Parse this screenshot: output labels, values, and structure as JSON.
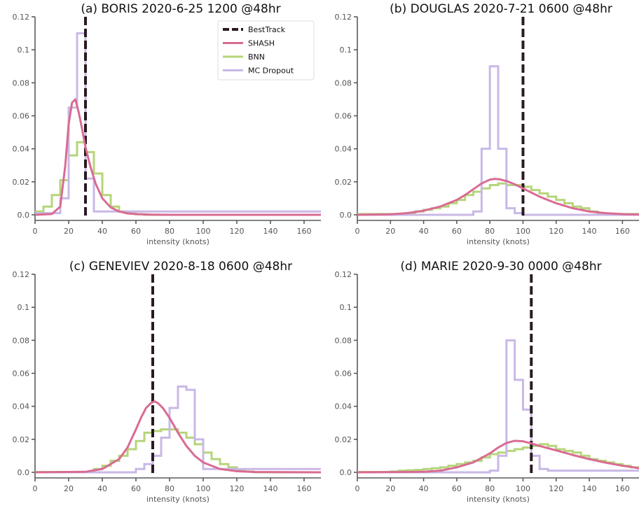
{
  "chart_data": [
    {
      "type": "line",
      "title": "(a) BORIS 2020-6-25 1200 @48hr",
      "xlabel": "intensity (knots)",
      "ylabel": "",
      "xlim": [
        0,
        170
      ],
      "ylim": [
        0,
        0.12
      ],
      "xticks": [
        "0",
        "20",
        "40",
        "60",
        "80",
        "100",
        "120",
        "140",
        "160"
      ],
      "yticks": [
        "0.0",
        "0.02",
        "0.04",
        "0.06",
        "0.08",
        "0.1",
        "0.12"
      ],
      "legend": {
        "position": "top-right",
        "entries": [
          "BestTrack",
          "SHASH",
          "BNN",
          "MC Dropout"
        ]
      },
      "besttrack": 30,
      "shash": {
        "x": [
          0,
          10,
          15,
          18,
          20,
          22,
          24,
          26,
          28,
          30,
          33,
          36,
          40,
          45,
          50,
          55,
          60,
          70,
          80,
          100,
          170
        ],
        "y": [
          0,
          0.0005,
          0.005,
          0.03,
          0.055,
          0.068,
          0.07,
          0.062,
          0.052,
          0.041,
          0.029,
          0.019,
          0.01,
          0.0045,
          0.002,
          0.0009,
          0.0004,
          0.0001,
          0,
          0,
          0
        ]
      },
      "bnn": {
        "edges": [
          0,
          5,
          10,
          15,
          20,
          25,
          30,
          35,
          40,
          45,
          50,
          55,
          60,
          65,
          170
        ],
        "values": [
          0.002,
          0.005,
          0.012,
          0.021,
          0.036,
          0.044,
          0.038,
          0.025,
          0.012,
          0.005,
          0.002,
          0.0008,
          0.0003,
          0
        ]
      },
      "mc_dropout": {
        "edges": [
          0,
          15,
          20,
          25,
          30,
          35,
          170
        ],
        "values": [
          0.001,
          0.01,
          0.065,
          0.11,
          0.022,
          0.002
        ]
      }
    },
    {
      "type": "line",
      "title": "(b) DOUGLAS 2020-7-21 0600 @48hr",
      "xlabel": "intensity (knots)",
      "ylabel": "",
      "xlim": [
        0,
        170
      ],
      "ylim": [
        0,
        0.12
      ],
      "xticks": [
        "0",
        "20",
        "40",
        "60",
        "80",
        "100",
        "120",
        "140",
        "160"
      ],
      "yticks": [
        "0.0",
        "0.02",
        "0.04",
        "0.06",
        "0.08",
        "0.1",
        "0.12"
      ],
      "besttrack": 100,
      "shash": {
        "x": [
          0,
          20,
          30,
          40,
          50,
          60,
          65,
          70,
          75,
          80,
          83,
          86,
          90,
          95,
          100,
          105,
          110,
          120,
          130,
          140,
          150,
          160,
          170
        ],
        "y": [
          0,
          0.0003,
          0.001,
          0.0025,
          0.005,
          0.009,
          0.012,
          0.0155,
          0.019,
          0.0213,
          0.0218,
          0.0215,
          0.0205,
          0.0185,
          0.016,
          0.0135,
          0.011,
          0.007,
          0.004,
          0.002,
          0.001,
          0.0004,
          0.0002
        ]
      },
      "bnn": {
        "edges": [
          0,
          30,
          35,
          40,
          45,
          50,
          55,
          60,
          65,
          70,
          75,
          80,
          85,
          90,
          95,
          100,
          105,
          110,
          115,
          120,
          125,
          130,
          135,
          140,
          145,
          150,
          170
        ],
        "values": [
          0.0005,
          0.001,
          0.002,
          0.003,
          0.004,
          0.005,
          0.007,
          0.009,
          0.012,
          0.014,
          0.016,
          0.018,
          0.019,
          0.018,
          0.018,
          0.017,
          0.015,
          0.013,
          0.011,
          0.009,
          0.007,
          0.005,
          0.004,
          0.002,
          0.001,
          0.0005
        ]
      },
      "mc_dropout": {
        "edges": [
          0,
          70,
          75,
          80,
          85,
          90,
          95,
          100,
          170
        ],
        "values": [
          0,
          0.002,
          0.04,
          0.09,
          0.04,
          0.004,
          0.001,
          0
        ]
      }
    },
    {
      "type": "line",
      "title": "(c) GENEVIEV 2020-8-18 0600 @48hr",
      "xlabel": "intensity (knots)",
      "ylabel": "",
      "xlim": [
        0,
        170
      ],
      "ylim": [
        0,
        0.12
      ],
      "xticks": [
        "0",
        "20",
        "40",
        "60",
        "80",
        "100",
        "120",
        "140",
        "160"
      ],
      "yticks": [
        "0.0",
        "0.02",
        "0.04",
        "0.06",
        "0.08",
        "0.1",
        "0.12"
      ],
      "besttrack": 70,
      "shash": {
        "x": [
          0,
          30,
          40,
          50,
          55,
          60,
          63,
          66,
          69,
          71,
          73,
          76,
          80,
          85,
          90,
          95,
          100,
          110,
          120,
          130,
          170
        ],
        "y": [
          0,
          0.0003,
          0.002,
          0.008,
          0.015,
          0.026,
          0.033,
          0.039,
          0.042,
          0.043,
          0.042,
          0.039,
          0.033,
          0.024,
          0.016,
          0.01,
          0.006,
          0.002,
          0.0007,
          0.0002,
          0
        ]
      },
      "bnn": {
        "edges": [
          0,
          35,
          40,
          45,
          50,
          55,
          60,
          65,
          70,
          75,
          80,
          85,
          90,
          95,
          100,
          105,
          110,
          115,
          120,
          125,
          130,
          170
        ],
        "values": [
          0.0002,
          0.002,
          0.004,
          0.007,
          0.01,
          0.014,
          0.019,
          0.024,
          0.025,
          0.026,
          0.026,
          0.024,
          0.021,
          0.017,
          0.012,
          0.008,
          0.005,
          0.003,
          0.0015,
          0.0005,
          0
        ]
      },
      "mc_dropout": {
        "edges": [
          0,
          60,
          65,
          70,
          75,
          80,
          85,
          90,
          95,
          100,
          170
        ],
        "values": [
          0,
          0.002,
          0.005,
          0.01,
          0.021,
          0.039,
          0.052,
          0.05,
          0.02,
          0.002
        ]
      }
    },
    {
      "type": "line",
      "title": "(d) MARIE 2020-9-30 0000 @48hr",
      "xlabel": "intensity (knots)",
      "ylabel": "",
      "xlim": [
        0,
        170
      ],
      "ylim": [
        0,
        0.12
      ],
      "xticks": [
        "0",
        "20",
        "40",
        "60",
        "80",
        "100",
        "120",
        "140",
        "160"
      ],
      "yticks": [
        "0.0",
        "0.02",
        "0.04",
        "0.06",
        "0.08",
        "0.1",
        "0.12"
      ],
      "besttrack": 105,
      "shash": {
        "x": [
          0,
          40,
          50,
          60,
          70,
          80,
          85,
          90,
          95,
          100,
          105,
          110,
          120,
          130,
          140,
          150,
          160,
          170
        ],
        "y": [
          0,
          0.0003,
          0.001,
          0.003,
          0.006,
          0.0115,
          0.015,
          0.0178,
          0.0191,
          0.0188,
          0.0175,
          0.016,
          0.0133,
          0.0105,
          0.008,
          0.0058,
          0.004,
          0.0025
        ]
      },
      "bnn": {
        "edges": [
          0,
          20,
          25,
          30,
          35,
          40,
          45,
          50,
          55,
          60,
          65,
          70,
          75,
          80,
          85,
          90,
          95,
          100,
          105,
          110,
          115,
          120,
          125,
          130,
          135,
          140,
          145,
          150,
          155,
          160,
          165,
          170
        ],
        "values": [
          0.0002,
          0.0005,
          0.001,
          0.0012,
          0.0015,
          0.002,
          0.0025,
          0.003,
          0.004,
          0.005,
          0.006,
          0.007,
          0.009,
          0.011,
          0.012,
          0.013,
          0.014,
          0.015,
          0.016,
          0.017,
          0.016,
          0.014,
          0.013,
          0.012,
          0.01,
          0.008,
          0.007,
          0.006,
          0.005,
          0.004,
          0.003
        ]
      },
      "mc_dropout": {
        "edges": [
          0,
          80,
          85,
          90,
          95,
          100,
          105,
          110,
          115,
          170
        ],
        "values": [
          0,
          0.001,
          0.01,
          0.08,
          0.056,
          0.038,
          0.01,
          0.002,
          0.001
        ]
      }
    }
  ],
  "colors": {
    "besttrack": "#2a1a22",
    "shash": "#d96b93",
    "bnn": "#b5d57a",
    "mc_dropout": "#c9b8e6",
    "axis": "#5a5a5a"
  }
}
